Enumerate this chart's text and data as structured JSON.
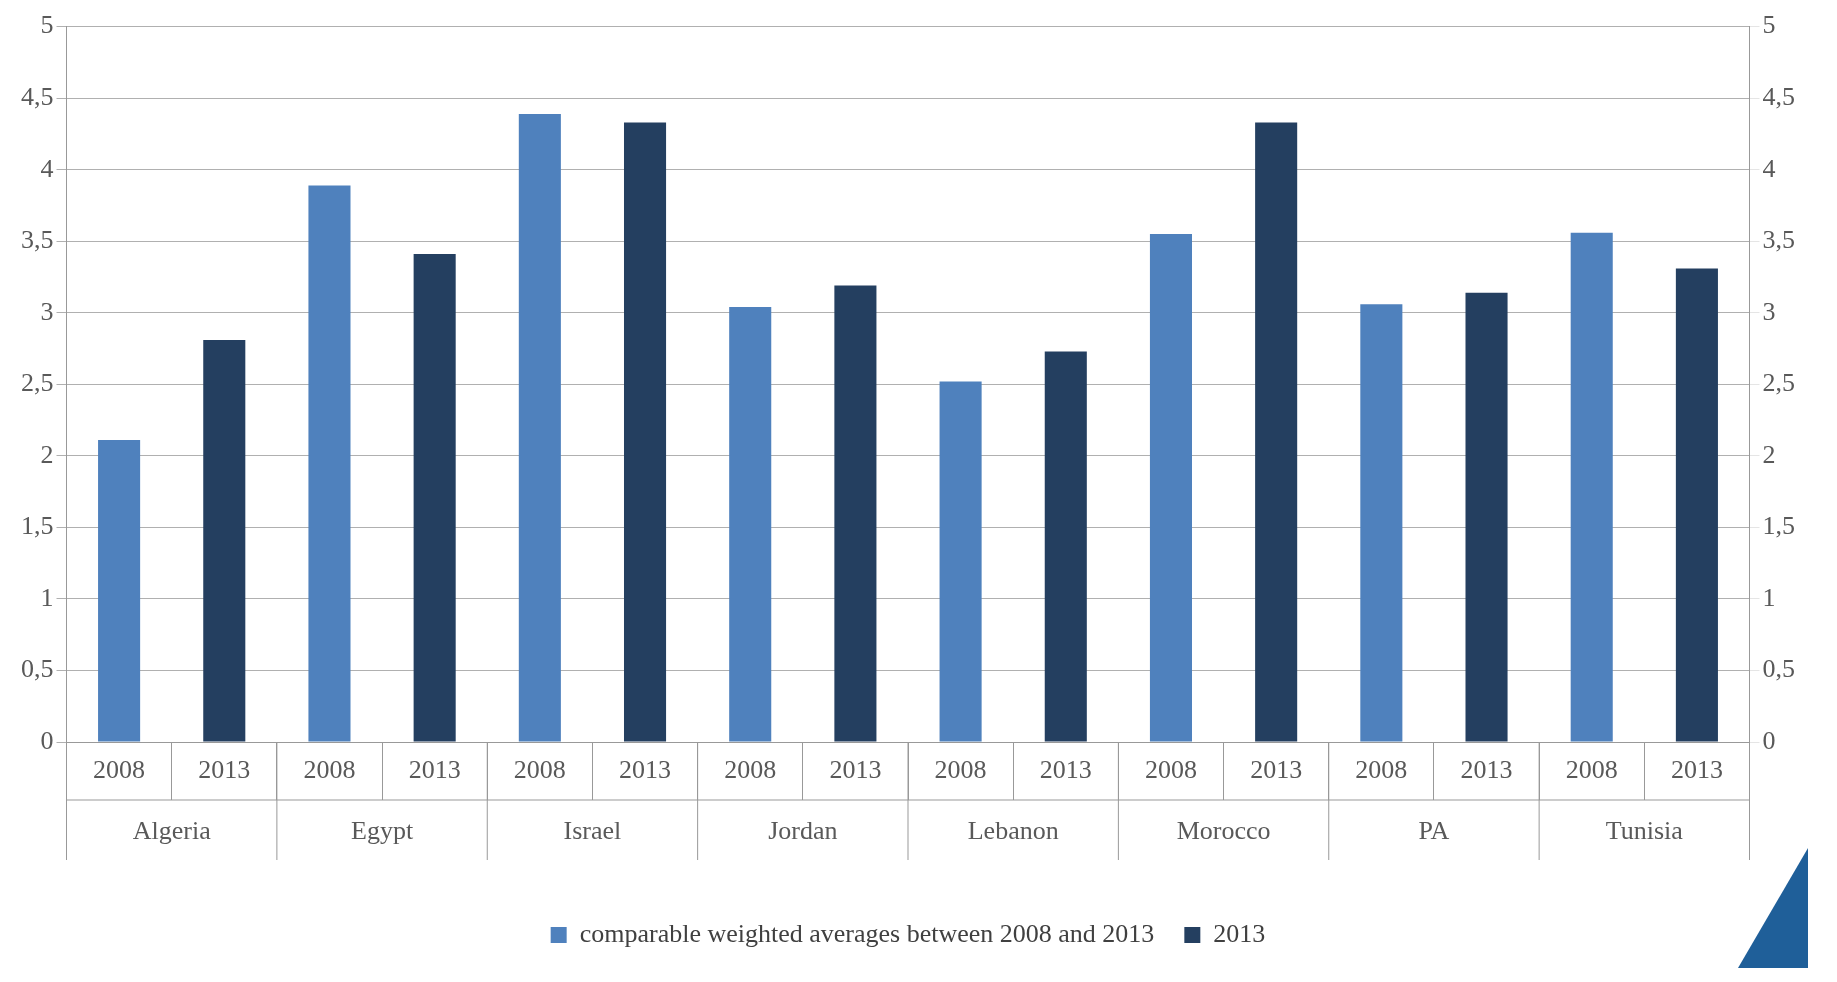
{
  "chart_data": {
    "type": "bar",
    "categories": [
      "2008",
      "2013",
      "2008",
      "2013",
      "2008",
      "2013",
      "2008",
      "2013",
      "2008",
      "2013",
      "2008",
      "2013",
      "2008",
      "2013",
      "2008",
      "2013"
    ],
    "series": [
      {
        "name": "comparable weighted averages between 2008 and 2013",
        "color": "#4f81bd",
        "values": [
          2.11,
          null,
          3.89,
          null,
          4.39,
          null,
          3.04,
          null,
          2.52,
          null,
          3.55,
          null,
          3.06,
          null,
          3.56,
          null
        ]
      },
      {
        "name": "2013",
        "color": "#243f60",
        "values": [
          null,
          2.81,
          null,
          3.41,
          null,
          4.33,
          null,
          3.19,
          null,
          2.73,
          null,
          4.33,
          null,
          3.14,
          null,
          3.31
        ]
      }
    ],
    "annotations": [
      "Algeria",
      "Egypt",
      "Israel",
      "Jordan",
      "Lebanon",
      "Morocco",
      "PA",
      "Tunisia"
    ],
    "ylim": [
      0,
      5
    ],
    "yticks": [
      0,
      {
        "value": 0.5,
        "label": "0,5"
      },
      1,
      {
        "value": 1.5,
        "label": "1,5"
      },
      2,
      {
        "value": 2.5,
        "label": "2,5"
      },
      3,
      {
        "value": 3.5,
        "label": "3,5"
      },
      4,
      {
        "value": 4.5,
        "label": "4,5"
      },
      5
    ],
    "y2lim": [
      0,
      5
    ],
    "y2ticks": [
      0,
      {
        "value": 0.5,
        "label": "0,5"
      },
      1,
      {
        "value": 1.5,
        "label": "1,5"
      },
      2,
      {
        "value": 2.5,
        "label": "2,5"
      },
      3,
      {
        "value": 3.5,
        "label": "3,5"
      },
      4,
      {
        "value": 4.5,
        "label": "4,5"
      },
      5
    ],
    "grid": "y",
    "legend": "bottom"
  }
}
